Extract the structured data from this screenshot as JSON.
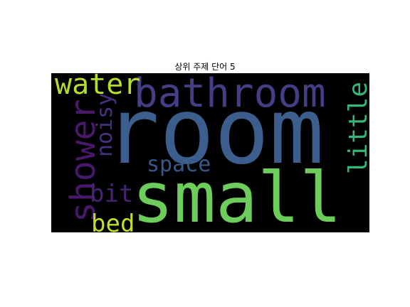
{
  "chart_data": {
    "type": "wordcloud",
    "title": "상위 주제 단어 5",
    "background": "#000000",
    "words": [
      {
        "text": "room",
        "color": "#3b5e8c"
      },
      {
        "text": "small",
        "color": "#6ccd5a"
      },
      {
        "text": "bathroom",
        "color": "#433e85"
      },
      {
        "text": "shower",
        "color": "#48186a"
      },
      {
        "text": "water",
        "color": "#b5de2b"
      },
      {
        "text": "little",
        "color": "#35b779"
      },
      {
        "text": "noisy",
        "color": "#46327e"
      },
      {
        "text": "space",
        "color": "#38588c"
      },
      {
        "text": "bit",
        "color": "#482475"
      },
      {
        "text": "bed",
        "color": "#c2df23"
      }
    ]
  }
}
